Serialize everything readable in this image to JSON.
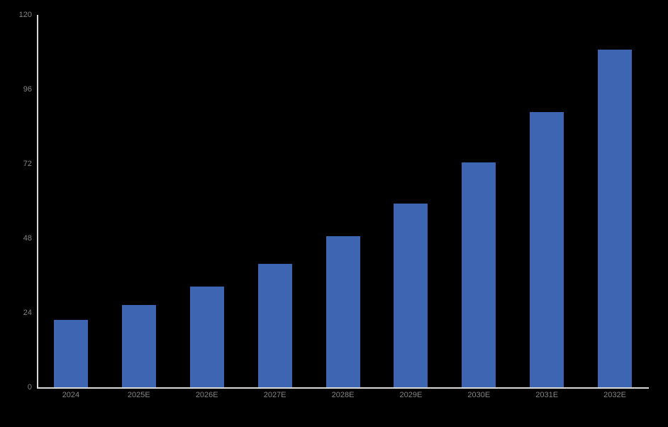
{
  "chart_data": {
    "type": "bar",
    "title": "",
    "xlabel": "",
    "ylabel": "",
    "categories": [
      "2024",
      "2025E",
      "2026E",
      "2027E",
      "2028E",
      "2029E",
      "2030E",
      "2031E",
      "2032E"
    ],
    "values": [
      21.7,
      26.5,
      32.4,
      39.8,
      48.7,
      59.2,
      72.5,
      88.8,
      108.9
    ],
    "y_ticks": [
      0,
      24,
      48,
      72,
      96,
      120
    ],
    "ylim": [
      0,
      120
    ],
    "grid": false,
    "legend_position": "none",
    "colors": {
      "bar": "#3e65b1",
      "axis_line": "#d9d9d9",
      "tick_label": "#848484",
      "background": "#000000"
    }
  }
}
